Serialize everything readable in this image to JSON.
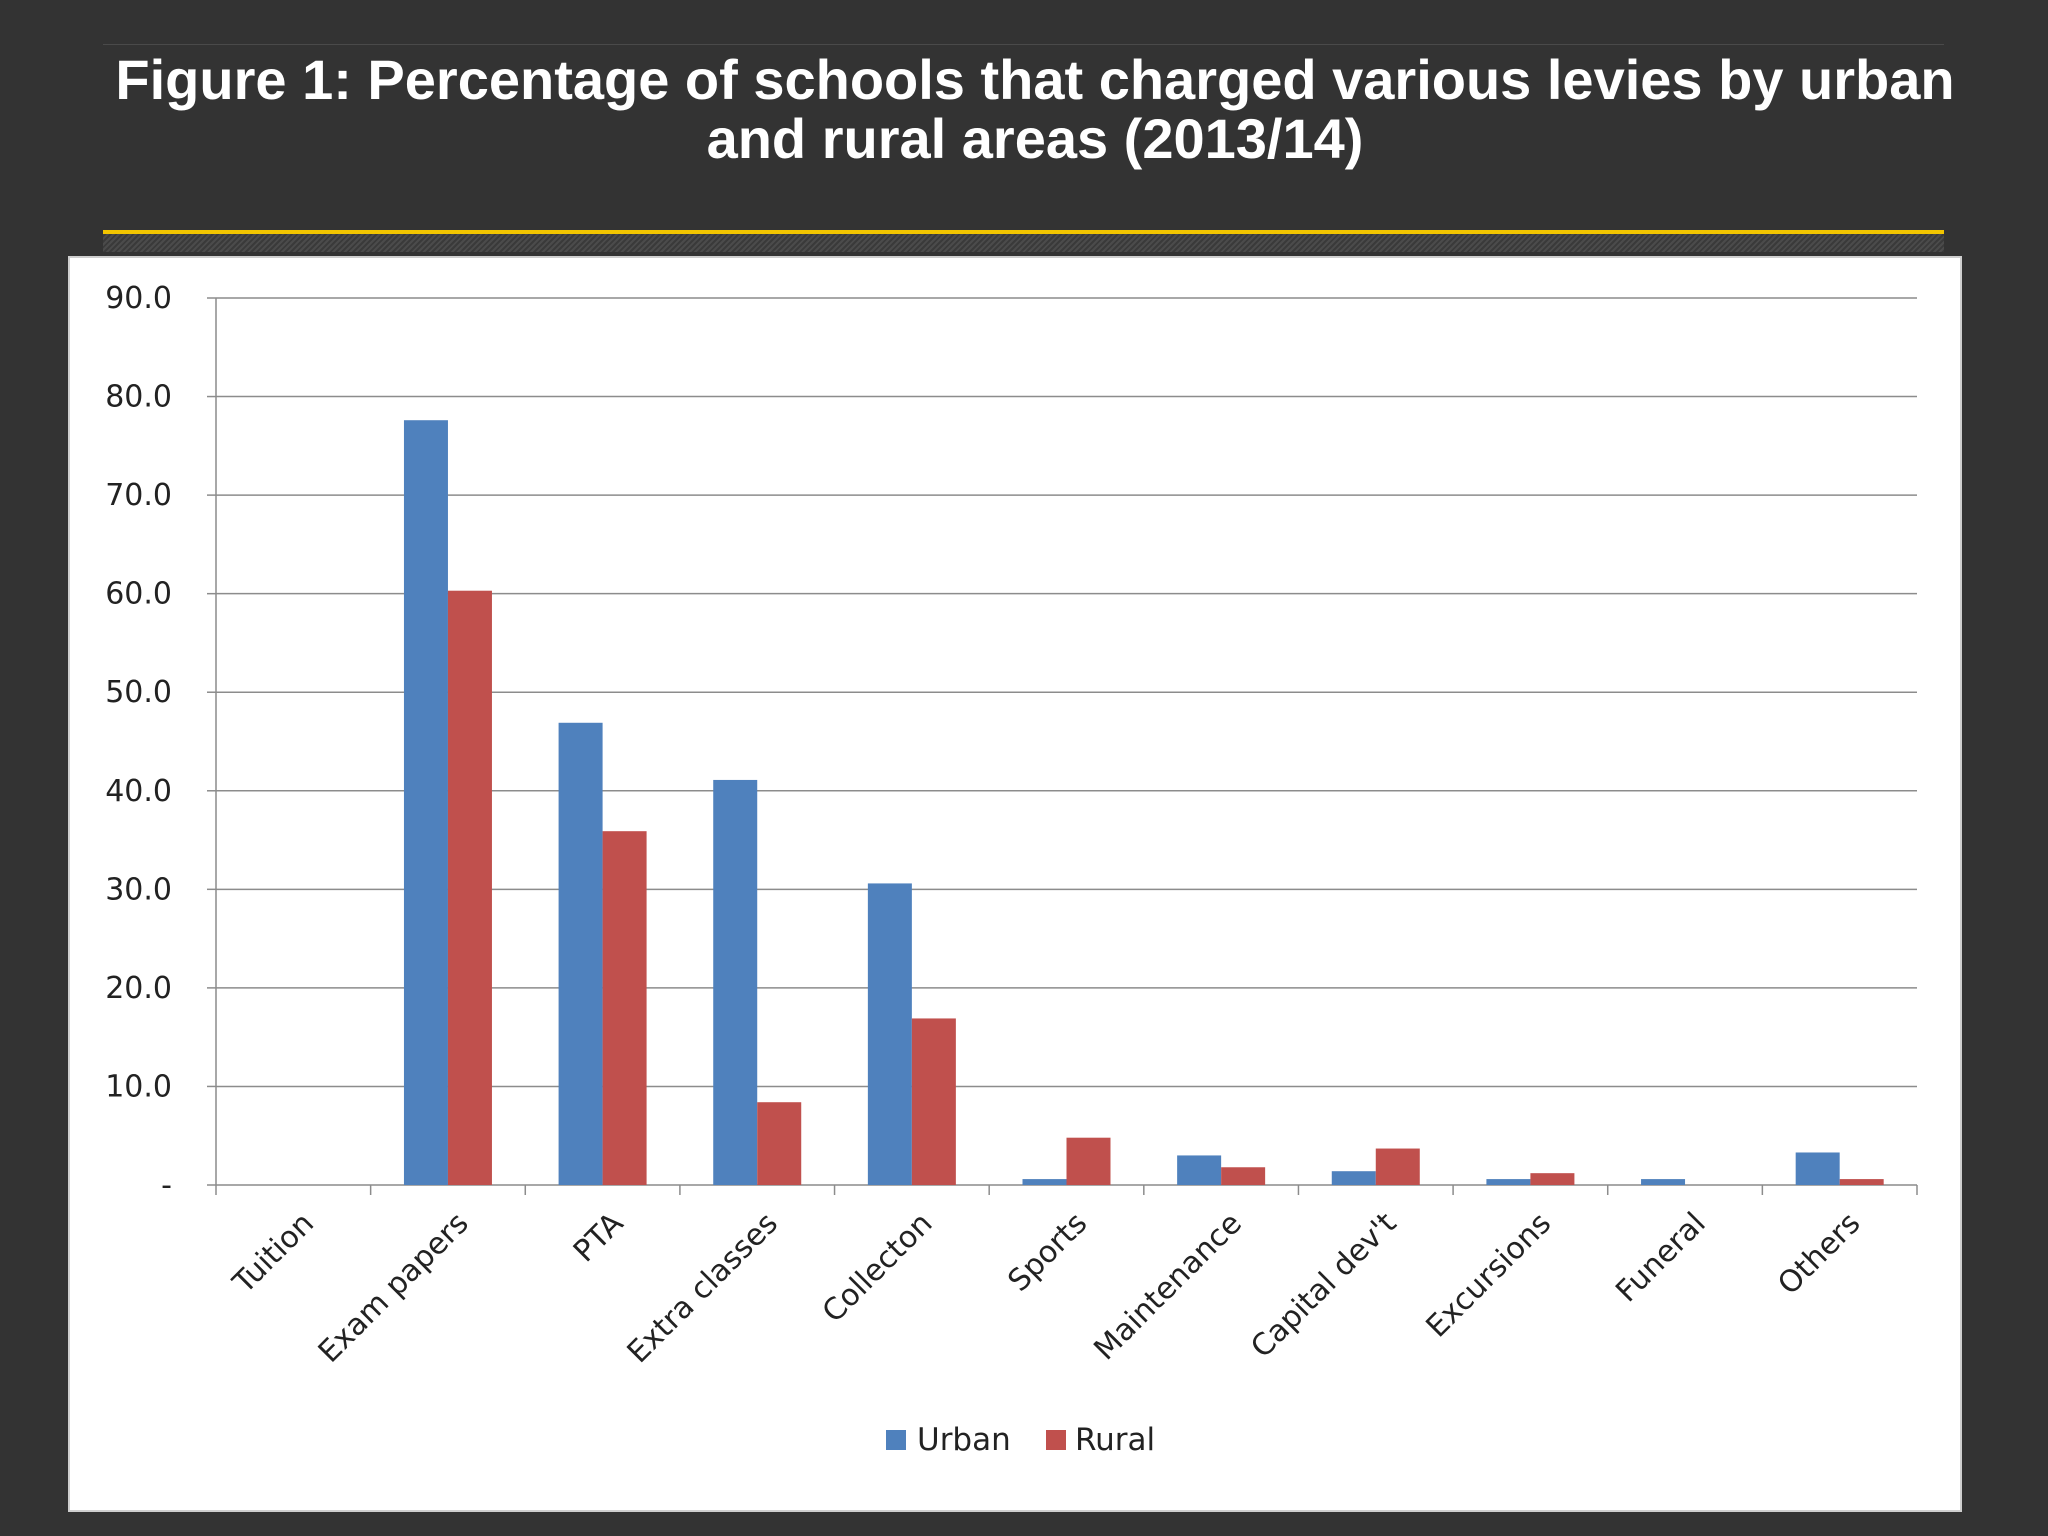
{
  "slide": {
    "title": "Figure 1: Percentage of schools that charged various levies by urban and rural areas (2013/14)"
  },
  "colors": {
    "background": "#333333",
    "accent_line": "#f2c500",
    "urban": "#4f81bd",
    "rural": "#c0504d"
  },
  "chart_data": {
    "type": "bar",
    "title": "",
    "xlabel": "",
    "ylabel": "",
    "ylim": [
      0,
      90
    ],
    "y_ticks": [
      {
        "value": 0,
        "label": "-"
      },
      {
        "value": 10,
        "label": "10.0"
      },
      {
        "value": 20,
        "label": "20.0"
      },
      {
        "value": 30,
        "label": "30.0"
      },
      {
        "value": 40,
        "label": "40.0"
      },
      {
        "value": 50,
        "label": "50.0"
      },
      {
        "value": 60,
        "label": "60.0"
      },
      {
        "value": 70,
        "label": "70.0"
      },
      {
        "value": 80,
        "label": "80.0"
      },
      {
        "value": 90,
        "label": "90.0"
      }
    ],
    "grid": true,
    "legend": "bottom",
    "categories": [
      "Tuition",
      "Exam papers",
      "PTA",
      "Extra classes",
      "Collecton",
      "Sports",
      "Maintenance",
      "Capital dev't",
      "Excursions",
      "Funeral",
      "Others"
    ],
    "series": [
      {
        "name": "Urban",
        "color": "#4f81bd",
        "values": [
          0,
          77.6,
          46.9,
          41.1,
          30.6,
          0.6,
          3.0,
          1.4,
          0.6,
          0.6,
          3.3
        ]
      },
      {
        "name": "Rural",
        "color": "#c0504d",
        "values": [
          0,
          60.3,
          35.9,
          8.4,
          16.9,
          4.8,
          1.8,
          3.7,
          1.2,
          0,
          0.6
        ]
      }
    ]
  }
}
